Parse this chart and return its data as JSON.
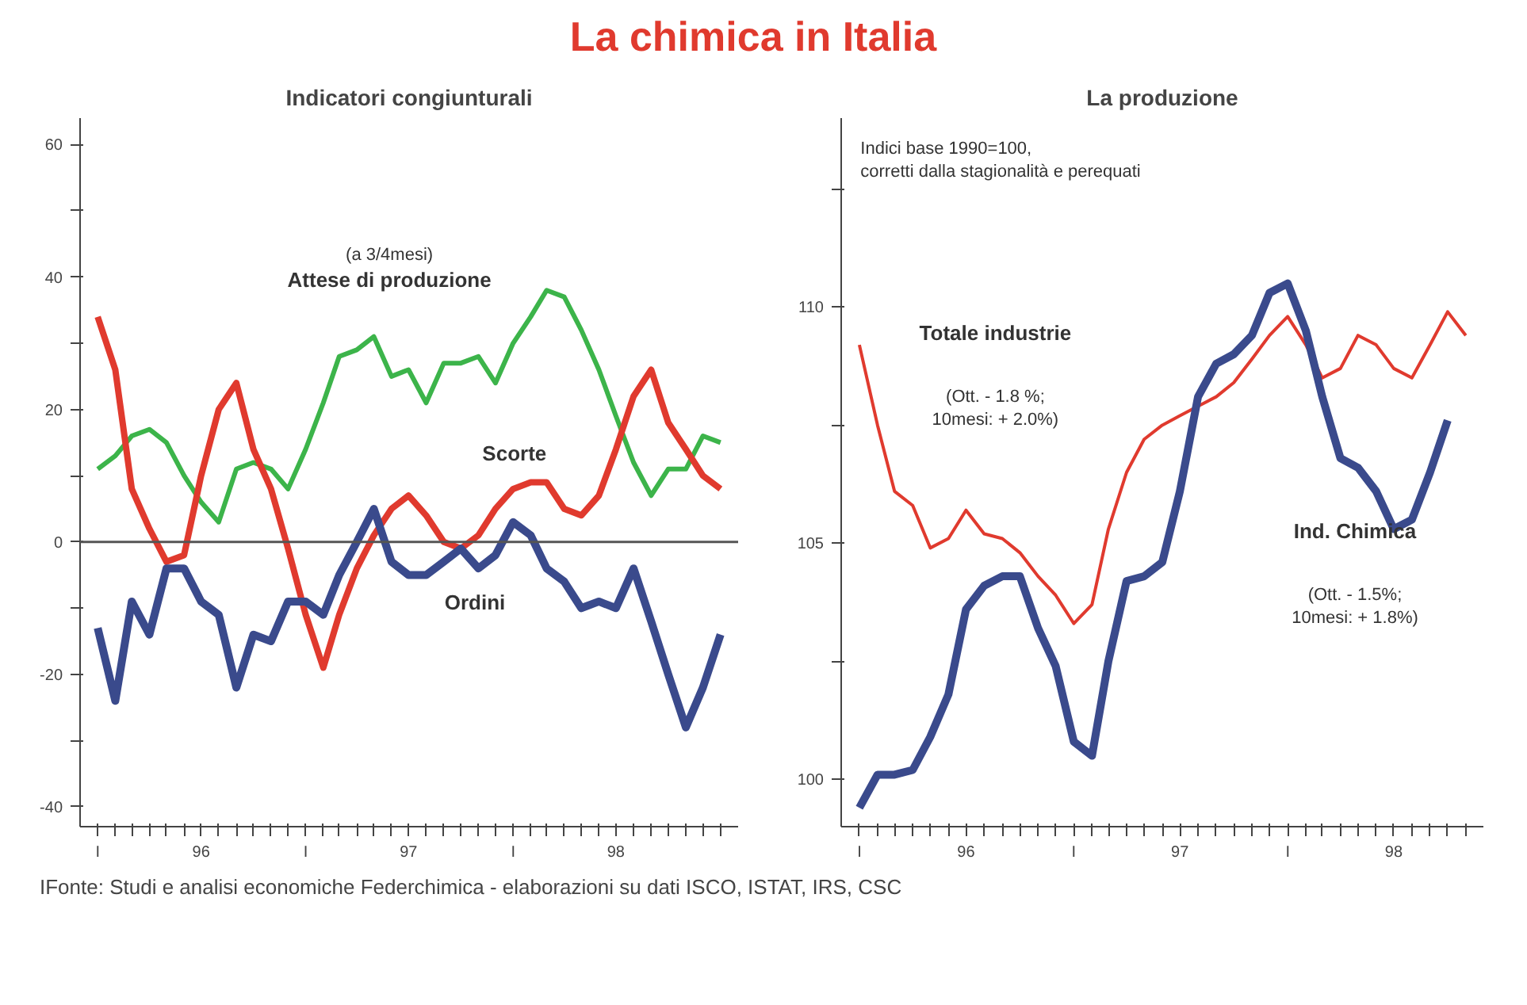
{
  "chart_data": [
    {
      "type": "other",
      "title": "La chimica in Italia",
      "annotations": [
        "IFonte: Studi e analisi economiche Federchimica - elaborazioni su dati ISCO, ISTAT, IRS, CSC"
      ]
    },
    {
      "type": "line",
      "title": "Indicatori congiunturali",
      "x": [
        "1996-01",
        "1996-02",
        "1996-03",
        "1996-04",
        "1996-05",
        "1996-06",
        "1996-07",
        "1996-08",
        "1996-09",
        "1996-10",
        "1996-11",
        "1996-12",
        "1997-01",
        "1997-02",
        "1997-03",
        "1997-04",
        "1997-05",
        "1997-06",
        "1997-07",
        "1997-08",
        "1997-09",
        "1997-10",
        "1997-11",
        "1997-12",
        "1998-01",
        "1998-02",
        "1998-03",
        "1998-04",
        "1998-05",
        "1998-06",
        "1998-07",
        "1998-08",
        "1998-09",
        "1998-10",
        "1998-11",
        "1998-12",
        "1999-01"
      ],
      "series": [
        {
          "name": "Attese di produzione",
          "color": "#3cb44a",
          "values": [
            11,
            13,
            16,
            17,
            15,
            10,
            6,
            3,
            11,
            12,
            11,
            8,
            14,
            21,
            28,
            29,
            31,
            25,
            26,
            21,
            27,
            27,
            28,
            24,
            30,
            34,
            38,
            37,
            32,
            26,
            19,
            12,
            7,
            11,
            11,
            16,
            15
          ]
        },
        {
          "name": "Scorte",
          "color": "#e03a2e",
          "values": [
            34,
            26,
            8,
            2,
            -3,
            -2,
            10,
            20,
            24,
            14,
            8,
            -1,
            -11,
            -19,
            -11,
            -4,
            1,
            5,
            7,
            4,
            0,
            -1,
            1,
            5,
            8,
            9,
            9,
            5,
            4,
            7,
            14,
            22,
            26,
            18,
            14,
            10,
            8
          ]
        },
        {
          "name": "Ordini",
          "color": "#3a4a8c",
          "values": [
            -13,
            -24,
            -9,
            -14,
            -4,
            -4,
            -9,
            -11,
            -22,
            -14,
            -15,
            -9,
            -9,
            -11,
            -5,
            0,
            5,
            -3,
            -5,
            -5,
            -3,
            -1,
            -4,
            -2,
            3,
            1,
            -4,
            -6,
            -10,
            -9,
            -10,
            -4,
            -12,
            -20,
            -28,
            -22,
            -14
          ]
        }
      ],
      "annotations": [
        "(a 3/4mesi)"
      ],
      "xlim": [
        "1995-12",
        "1999-02"
      ],
      "ylim": [
        -43,
        64
      ],
      "xticks": [
        {
          "value": "1996-01",
          "label": "I"
        },
        {
          "value": "1996-02",
          "label": null
        },
        {
          "value": "1996-03",
          "label": null
        },
        {
          "value": "1996-04",
          "label": null
        },
        {
          "value": "1996-05",
          "label": null
        },
        {
          "value": "1996-06",
          "label": null
        },
        {
          "value": "1996-07",
          "label": "96"
        },
        {
          "value": "1996-08",
          "label": null
        },
        {
          "value": "1996-09",
          "label": null
        },
        {
          "value": "1996-10",
          "label": null
        },
        {
          "value": "1996-11",
          "label": null
        },
        {
          "value": "1996-12",
          "label": null
        },
        {
          "value": "1997-01",
          "label": "I"
        },
        {
          "value": "1997-02",
          "label": null
        },
        {
          "value": "1997-03",
          "label": null
        },
        {
          "value": "1997-04",
          "label": null
        },
        {
          "value": "1997-05",
          "label": null
        },
        {
          "value": "1997-06",
          "label": null
        },
        {
          "value": "1997-07",
          "label": "97"
        },
        {
          "value": "1997-08",
          "label": null
        },
        {
          "value": "1997-09",
          "label": null
        },
        {
          "value": "1997-10",
          "label": null
        },
        {
          "value": "1997-11",
          "label": null
        },
        {
          "value": "1997-12",
          "label": null
        },
        {
          "value": "1998-01",
          "label": "I"
        },
        {
          "value": "1998-02",
          "label": null
        },
        {
          "value": "1998-03",
          "label": null
        },
        {
          "value": "1998-04",
          "label": null
        },
        {
          "value": "1998-05",
          "label": null
        },
        {
          "value": "1998-06",
          "label": null
        },
        {
          "value": "1998-07",
          "label": "98"
        },
        {
          "value": "1998-08",
          "label": null
        },
        {
          "value": "1998-09",
          "label": null
        },
        {
          "value": "1998-10",
          "label": null
        },
        {
          "value": "1998-11",
          "label": null
        },
        {
          "value": "1998-12",
          "label": null
        },
        {
          "value": "1999-01",
          "label": null
        }
      ],
      "yticks": [
        -40,
        {
          "value": -30,
          "label": null
        },
        -20,
        {
          "value": -10,
          "label": null
        },
        0,
        {
          "value": 10,
          "label": null
        },
        20,
        {
          "value": 30,
          "label": null
        },
        40,
        {
          "value": 50,
          "label": null
        },
        60
      ],
      "ref_lines": [
        {
          "axis": "y",
          "value": 0,
          "label": null,
          "color": "#555555"
        }
      ],
      "grid": false,
      "legend": false,
      "marker": "none",
      "line_style": "solid"
    },
    {
      "type": "line",
      "title": "La produzione",
      "x": [
        "1996-01",
        "1996-02",
        "1996-03",
        "1996-04",
        "1996-05",
        "1996-06",
        "1996-07",
        "1996-08",
        "1996-09",
        "1996-10",
        "1996-11",
        "1996-12",
        "1997-01",
        "1997-02",
        "1997-03",
        "1997-04",
        "1997-05",
        "1997-06",
        "1997-07",
        "1997-08",
        "1997-09",
        "1997-10",
        "1997-11",
        "1997-12",
        "1998-01",
        "1998-02",
        "1998-03",
        "1998-04",
        "1998-05",
        "1998-06",
        "1998-07",
        "1998-08",
        "1998-09",
        "1998-10",
        "1998-11"
      ],
      "series": [
        {
          "name": "Totale industrie",
          "color": "#e03a2e",
          "values": [
            109.2,
            107.5,
            106.1,
            105.8,
            104.9,
            105.1,
            105.7,
            105.2,
            105.1,
            104.8,
            104.3,
            103.9,
            103.3,
            103.7,
            105.3,
            106.5,
            107.2,
            107.5,
            107.7,
            107.9,
            108.1,
            108.4,
            108.9,
            109.4,
            109.8,
            109.2,
            108.5,
            108.7,
            109.4,
            109.2,
            108.7,
            108.5,
            109.2,
            109.9,
            109.4
          ]
        },
        {
          "name": "Ind. Chimica",
          "color": "#3a4a8c",
          "values": [
            99.4,
            100.1,
            100.1,
            100.2,
            100.9,
            101.8,
            103.6,
            104.1,
            104.3,
            104.3,
            103.2,
            102.4,
            100.8,
            100.5,
            102.5,
            104.2,
            104.3,
            104.6,
            106.1,
            108.1,
            108.8,
            109.0,
            109.4,
            110.3,
            110.5,
            109.5,
            108.1,
            106.8,
            106.6,
            106.1,
            105.3,
            105.5,
            106.5,
            107.6,
            null
          ]
        }
      ],
      "annotations": [
        "Indici base 1990=100,\n corretti dalla stagionalità e perequati",
        "(Ott. - 1.8 %;\n10mesi: + 2.0%)",
        "(Ott. - 1.5%;\n10mesi: + 1.8%)"
      ],
      "xlim": [
        "1995-12",
        "1998-12"
      ],
      "ylim": [
        99,
        114
      ],
      "xticks": [
        {
          "value": "1996-01",
          "label": "I"
        },
        {
          "value": "1996-02",
          "label": null
        },
        {
          "value": "1996-03",
          "label": null
        },
        {
          "value": "1996-04",
          "label": null
        },
        {
          "value": "1996-05",
          "label": null
        },
        {
          "value": "1996-06",
          "label": null
        },
        {
          "value": "1996-07",
          "label": "96"
        },
        {
          "value": "1996-08",
          "label": null
        },
        {
          "value": "1996-09",
          "label": null
        },
        {
          "value": "1996-10",
          "label": null
        },
        {
          "value": "1996-11",
          "label": null
        },
        {
          "value": "1996-12",
          "label": null
        },
        {
          "value": "1997-01",
          "label": "I"
        },
        {
          "value": "1997-02",
          "label": null
        },
        {
          "value": "1997-03",
          "label": null
        },
        {
          "value": "1997-04",
          "label": null
        },
        {
          "value": "1997-05",
          "label": null
        },
        {
          "value": "1997-06",
          "label": null
        },
        {
          "value": "1997-07",
          "label": "97"
        },
        {
          "value": "1997-08",
          "label": null
        },
        {
          "value": "1997-09",
          "label": null
        },
        {
          "value": "1997-10",
          "label": null
        },
        {
          "value": "1997-11",
          "label": null
        },
        {
          "value": "1997-12",
          "label": null
        },
        {
          "value": "1998-01",
          "label": "I"
        },
        {
          "value": "1998-02",
          "label": null
        },
        {
          "value": "1998-03",
          "label": null
        },
        {
          "value": "1998-04",
          "label": null
        },
        {
          "value": "1998-05",
          "label": null
        },
        {
          "value": "1998-06",
          "label": null
        },
        {
          "value": "1998-07",
          "label": "98"
        },
        {
          "value": "1998-08",
          "label": null
        },
        {
          "value": "1998-09",
          "label": null
        },
        {
          "value": "1998-10",
          "label": null
        },
        {
          "value": "1998-11",
          "label": null
        }
      ],
      "yticks": [
        100,
        {
          "value": 102.5,
          "label": null
        },
        105,
        {
          "value": 107.5,
          "label": null
        },
        110,
        {
          "value": 112.5,
          "label": null
        }
      ],
      "grid": false,
      "legend": false,
      "marker": "none",
      "line_style": "solid"
    }
  ]
}
